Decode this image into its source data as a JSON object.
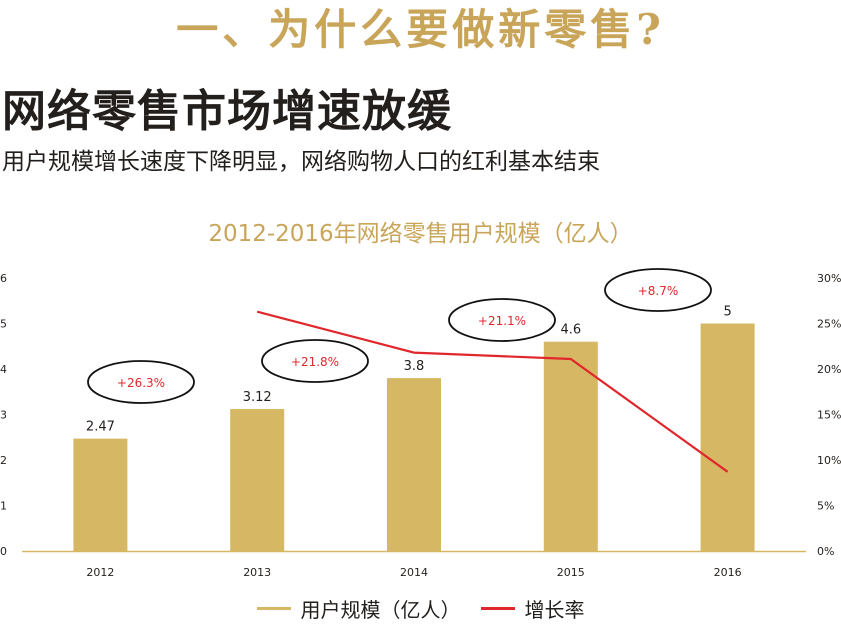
{
  "header": {
    "section_title": "一、为什么要做新零售?",
    "headline": "网络零售市场增速放缓",
    "subline": "用户规模增长速度下降明显，网络购物人口的红利基本结束"
  },
  "colors": {
    "gold": "#d6b763",
    "title_gold": "#c9a55a",
    "red": "#e0272b",
    "text": "#231f1c",
    "axis": "#555555"
  },
  "chart_data": {
    "type": "bar",
    "title": "2012-2016年网络零售用户规模（亿人）",
    "categories": [
      "2012",
      "2013",
      "2014",
      "2015",
      "2016"
    ],
    "series": [
      {
        "name": "用户规模（亿人）",
        "type": "bar",
        "axis": "left",
        "values": [
          2.47,
          3.12,
          3.8,
          4.6,
          5
        ],
        "labels": [
          "2.47",
          "3.12",
          "3.8",
          "4.6",
          "5"
        ]
      },
      {
        "name": "增长率",
        "type": "line",
        "axis": "right",
        "values": [
          null,
          26.3,
          21.8,
          21.1,
          8.7
        ]
      }
    ],
    "annotations": [
      "+26.3%",
      "+21.8%",
      "+21.1%",
      "+8.7%"
    ],
    "ylim_left": [
      0,
      6
    ],
    "yticks_left": [
      "0",
      "1",
      "2",
      "3",
      "4",
      "5",
      "6"
    ],
    "ylim_right": [
      0,
      30
    ],
    "yticks_right": [
      "0%",
      "5%",
      "10%",
      "15%",
      "20%",
      "25%",
      "30%"
    ],
    "grid": false,
    "legend_position": "bottom-center"
  }
}
